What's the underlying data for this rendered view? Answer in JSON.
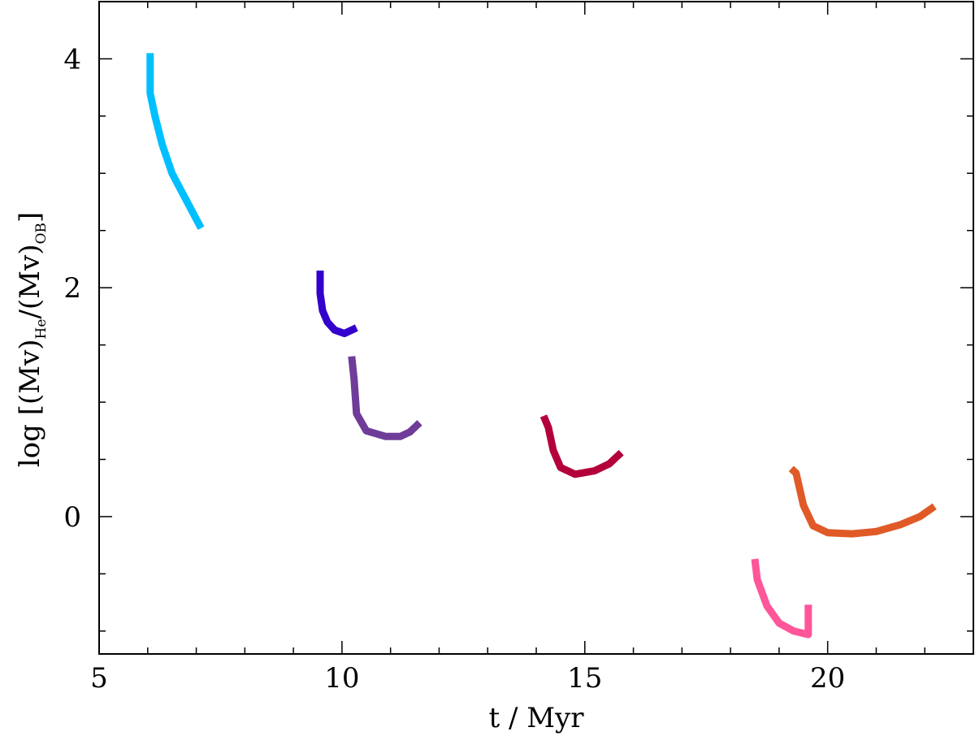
{
  "chart_data": {
    "type": "line",
    "title": "",
    "xlabel": "t / Myr",
    "ylabel": {
      "prefix": "log [(",
      "mdot": "M",
      "v1": "v)",
      "sub1": "He",
      "slash": "/(",
      "mdot2": "M",
      "v2": "v)",
      "sub2": "OB",
      "suffix": "]"
    },
    "xlim": [
      5,
      23
    ],
    "ylim": [
      -1.2,
      4.5
    ],
    "xticks": [
      5,
      10,
      15,
      20
    ],
    "yticks": [
      0,
      2,
      4
    ],
    "grid": false,
    "legend": "none",
    "series": [
      {
        "color": "#00bfff",
        "points": [
          [
            6.05,
            4.05
          ],
          [
            6.05,
            3.7
          ],
          [
            6.15,
            3.5
          ],
          [
            6.3,
            3.25
          ],
          [
            6.5,
            3.0
          ],
          [
            6.75,
            2.8
          ],
          [
            7.1,
            2.52
          ]
        ]
      },
      {
        "color": "#3300cc",
        "points": [
          [
            9.55,
            2.15
          ],
          [
            9.55,
            1.95
          ],
          [
            9.6,
            1.8
          ],
          [
            9.7,
            1.7
          ],
          [
            9.85,
            1.63
          ],
          [
            10.05,
            1.6
          ],
          [
            10.3,
            1.65
          ]
        ]
      },
      {
        "color": "#6f3d99",
        "points": [
          [
            10.2,
            1.4
          ],
          [
            10.25,
            1.2
          ],
          [
            10.3,
            0.9
          ],
          [
            10.5,
            0.75
          ],
          [
            10.9,
            0.7
          ],
          [
            11.2,
            0.7
          ],
          [
            11.4,
            0.74
          ],
          [
            11.6,
            0.82
          ]
        ]
      },
      {
        "color": "#b3003b",
        "points": [
          [
            14.15,
            0.88
          ],
          [
            14.25,
            0.78
          ],
          [
            14.35,
            0.58
          ],
          [
            14.5,
            0.43
          ],
          [
            14.8,
            0.37
          ],
          [
            15.2,
            0.4
          ],
          [
            15.5,
            0.46
          ],
          [
            15.75,
            0.56
          ]
        ]
      },
      {
        "color": "#ff5599",
        "points": [
          [
            18.5,
            -0.37
          ],
          [
            18.55,
            -0.55
          ],
          [
            18.75,
            -0.78
          ],
          [
            19.0,
            -0.93
          ],
          [
            19.3,
            -1.0
          ],
          [
            19.6,
            -1.03
          ],
          [
            19.6,
            -0.77
          ]
        ]
      },
      {
        "color": "#e05a28",
        "points": [
          [
            19.25,
            0.42
          ],
          [
            19.35,
            0.38
          ],
          [
            19.5,
            0.1
          ],
          [
            19.7,
            -0.08
          ],
          [
            20.0,
            -0.14
          ],
          [
            20.5,
            -0.15
          ],
          [
            21.0,
            -0.13
          ],
          [
            21.5,
            -0.07
          ],
          [
            21.9,
            0.0
          ],
          [
            22.2,
            0.09
          ]
        ]
      }
    ]
  }
}
